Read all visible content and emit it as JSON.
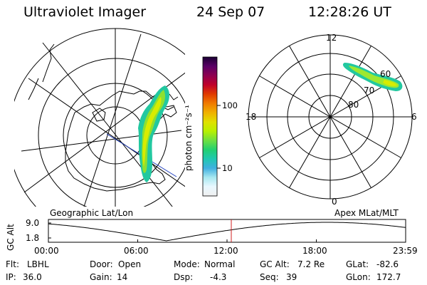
{
  "header": {
    "title": "Ultraviolet Imager",
    "date": "24 Sep 07",
    "time": "12:28:26 UT"
  },
  "colorbar": {
    "unit_label": "photon cm⁻²s⁻¹",
    "ticks": [
      "100",
      "10"
    ],
    "stops": [
      "#1a0033",
      "#5a0066",
      "#8e0050",
      "#c0002a",
      "#e03a00",
      "#f07a00",
      "#f0b000",
      "#e0e000",
      "#b8f000",
      "#6ee040",
      "#22d070",
      "#20c8b0",
      "#40b0e0",
      "#a8e8f0",
      "#e8f8ff",
      "#f0f0f0"
    ]
  },
  "left_panel": {
    "caption": "Geographic Lat/Lon"
  },
  "right_panel": {
    "caption": "Apex MLat/MLT",
    "hour_labels": {
      "top": "12",
      "left": "18",
      "right": "6",
      "bottom": "0"
    },
    "lat_labels": [
      "60",
      "70",
      "80"
    ]
  },
  "altitude_plot": {
    "ylabel": "GC Alt",
    "yticks": [
      "9.0",
      "1.8"
    ],
    "xticks": [
      "00:00",
      "06:00",
      "12:00",
      "18:00",
      "23:59"
    ],
    "marker_color": "#d02020"
  },
  "status": {
    "row1": [
      {
        "key": "Flt:",
        "value": "LBHL"
      },
      {
        "key": "Door:",
        "value": "Open"
      },
      {
        "key": "Mode:",
        "value": "Normal"
      },
      {
        "key": "GC Alt:",
        "value": "7.2 Re"
      },
      {
        "key": "GLat:",
        "value": "-82.6"
      }
    ],
    "row2": [
      {
        "key": "IP:",
        "value": "36.0"
      },
      {
        "key": "Gain:",
        "value": "14"
      },
      {
        "key": "Dsp:",
        "value": "-4.3"
      },
      {
        "key": "Seq:",
        "value": "39"
      },
      {
        "key": "GLon:",
        "value": "172.7"
      }
    ]
  }
}
